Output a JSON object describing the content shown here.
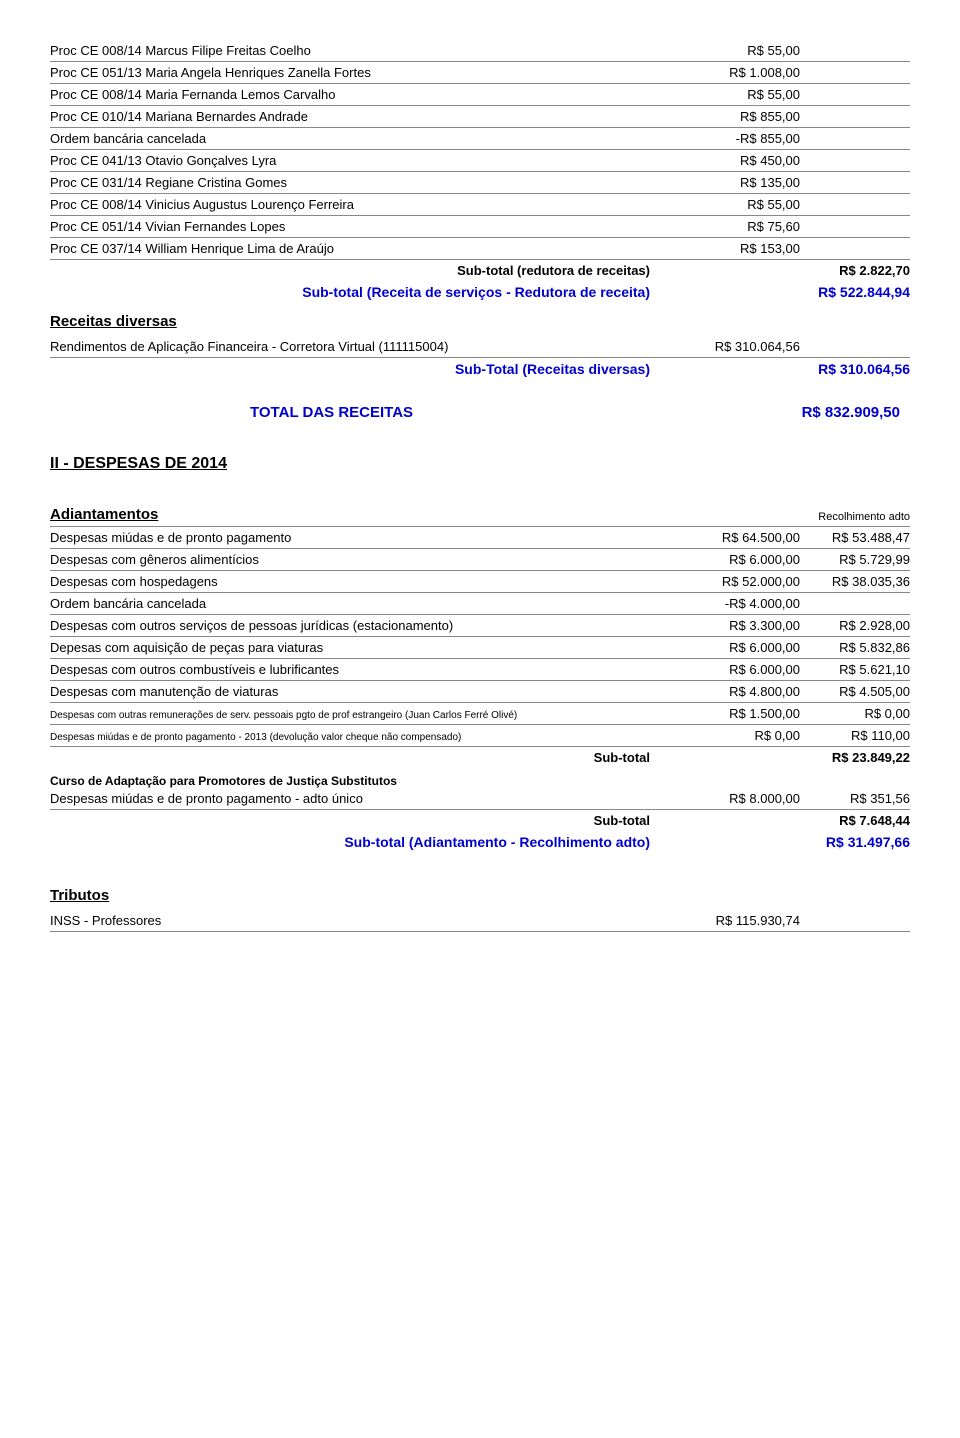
{
  "receitas_lines": [
    {
      "label": "Proc CE 008/14 Marcus Filipe Freitas Coelho",
      "val": "R$ 55,00"
    },
    {
      "label": "Proc CE 051/13 Maria Angela Henriques Zanella Fortes",
      "val": "R$ 1.008,00"
    },
    {
      "label": "Proc CE 008/14 Maria Fernanda Lemos Carvalho",
      "val": "R$ 55,00"
    },
    {
      "label": "Proc CE 010/14 Mariana Bernardes Andrade",
      "val": "R$ 855,00"
    },
    {
      "label": "Ordem bancária cancelada",
      "val": "-R$ 855,00"
    },
    {
      "label": "Proc CE 041/13 Otavio Gonçalves Lyra",
      "val": "R$ 450,00"
    },
    {
      "label": "Proc CE 031/14 Regiane Cristina Gomes",
      "val": "R$ 135,00"
    },
    {
      "label": "Proc CE 008/14 Vinicius Augustus Lourenço Ferreira",
      "val": "R$ 55,00"
    },
    {
      "label": "Proc CE 051/14 Vivian Fernandes Lopes",
      "val": "R$ 75,60"
    },
    {
      "label": "Proc CE 037/14 William Henrique Lima de Araújo",
      "val": "R$ 153,00"
    }
  ],
  "subtotal_redutora": {
    "label": "Sub-total (redutora de receitas)",
    "val": "R$ 2.822,70"
  },
  "subtotal_receita_serv": {
    "label": "Sub-total (Receita de serviços - Redutora de receita)",
    "val": "R$ 522.844,94"
  },
  "receitas_diversas": {
    "heading": "Receitas diversas",
    "line": {
      "label": "Rendimentos de Aplicação Financeira - Corretora Virtual (111115004)",
      "val": "R$ 310.064,56"
    },
    "subtotal": {
      "label": "Sub-Total (Receitas diversas)",
      "val": "R$ 310.064,56"
    }
  },
  "total_receitas": {
    "label": "TOTAL DAS RECEITAS",
    "val": "R$ 832.909,50"
  },
  "despesas_heading": "II - DESPESAS DE 2014",
  "adiantamentos": {
    "heading": "Adiantamentos",
    "col2_head": "Recolhimento adto",
    "rows": [
      {
        "label": "Despesas miúdas e de pronto pagamento",
        "v1": "R$ 64.500,00",
        "v2": "R$ 53.488,47"
      },
      {
        "label": "Despesas com gêneros alimentícios",
        "v1": "R$ 6.000,00",
        "v2": "R$ 5.729,99"
      },
      {
        "label": "Despesas com hospedagens",
        "v1": "R$ 52.000,00",
        "v2": "R$ 38.035,36"
      },
      {
        "label": "Ordem bancária cancelada",
        "v1": "-R$ 4.000,00",
        "v2": ""
      },
      {
        "label": "Despesas com outros serviços de pessoas jurídicas (estacionamento)",
        "v1": "R$ 3.300,00",
        "v2": "R$ 2.928,00"
      },
      {
        "label": "Depesas com aquisição de peças para viaturas",
        "v1": "R$ 6.000,00",
        "v2": "R$ 5.832,86"
      },
      {
        "label": "Despesas com outros combustíveis e lubrificantes",
        "v1": "R$ 6.000,00",
        "v2": "R$ 5.621,10"
      },
      {
        "label": "Despesas com manutenção de viaturas",
        "v1": "R$ 4.800,00",
        "v2": "R$ 4.505,00"
      },
      {
        "label": "Despesas com outras remunerações de serv. pessoais pgto de prof estrangeiro (Juan Carlos Ferré Olivé)",
        "v1": "R$ 1.500,00",
        "v2": "R$ 0,00",
        "small": true
      },
      {
        "label": "Despesas miúdas e de pronto pagamento - 2013 (devolução valor cheque não compensado)",
        "v1": "R$ 0,00",
        "v2": "R$ 110,00",
        "small": true
      }
    ],
    "subtotal1": {
      "label": "Sub-total",
      "val": "R$ 23.849,22"
    },
    "curso_heading": "Curso de Adaptação para Promotores de Justiça Substitutos",
    "curso_row": {
      "label": "Despesas miúdas e de pronto pagamento - adto único",
      "v1": "R$ 8.000,00",
      "v2": "R$ 351,56"
    },
    "subtotal2": {
      "label": "Sub-total",
      "val": "R$ 7.648,44"
    },
    "subtotal_final": {
      "label": "Sub-total (Adiantamento - Recolhimento adto)",
      "val": "R$ 31.497,66"
    }
  },
  "tributos": {
    "heading": "Tributos",
    "row": {
      "label": "INSS  - Professores",
      "val": "R$ 115.930,74"
    }
  }
}
